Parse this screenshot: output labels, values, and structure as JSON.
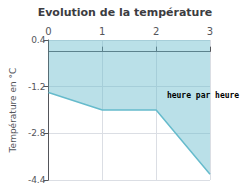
{
  "chart_data": {
    "type": "area",
    "title": "Evolution de la température",
    "ylabel": "Température en °C",
    "x": [
      0,
      1,
      2,
      3
    ],
    "values": [
      -1.4,
      -2.0,
      -2.0,
      -4.2
    ],
    "color": "#66bbcc",
    "xlim": [
      0,
      3
    ],
    "xticks": [
      0,
      1,
      2,
      3
    ],
    "ylim": [
      -4.4,
      0.4
    ],
    "yticks": [
      0.4,
      -1.2,
      -2.8,
      -4.4
    ],
    "grid": true,
    "annotations": [
      {
        "text": "heure par heure",
        "x": 2.2,
        "y": -1.5
      }
    ]
  }
}
